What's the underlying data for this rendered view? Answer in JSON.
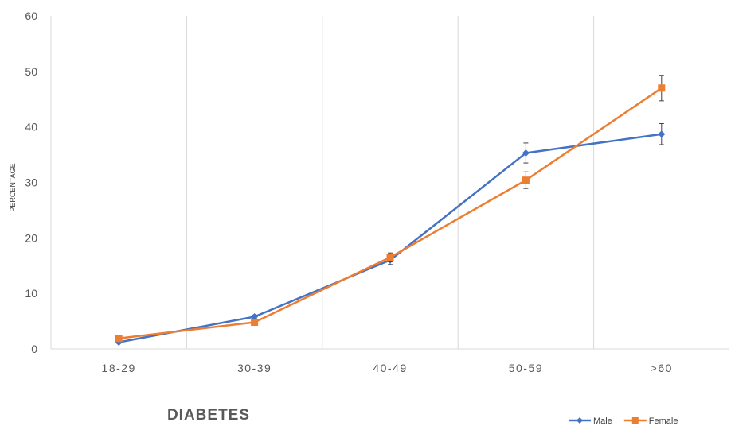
{
  "chart_data": {
    "type": "line",
    "categories": [
      "18-29",
      "30-39",
      "40-49",
      "50-59",
      ">60"
    ],
    "series": [
      {
        "name": "Male",
        "color": "#4472C4",
        "marker": "diamond",
        "values": [
          1.2,
          5.8,
          16.0,
          35.3,
          38.7
        ],
        "error": [
          0.2,
          0.3,
          0.8,
          1.8,
          1.9
        ]
      },
      {
        "name": "Female",
        "color": "#ED7D31",
        "marker": "square",
        "values": [
          1.9,
          4.8,
          16.5,
          30.4,
          47.0
        ],
        "error": [
          0.2,
          0.3,
          0.8,
          1.5,
          2.3
        ]
      }
    ],
    "ylim": [
      0,
      60
    ],
    "yticks": [
      "0",
      "10",
      "20",
      "30",
      "40",
      "50",
      "60"
    ],
    "ylabel": "PERCENTAGE",
    "xlabel": "",
    "subtitle": "DIABETES",
    "legend_position": "bottom-right",
    "grid": "vertical"
  }
}
